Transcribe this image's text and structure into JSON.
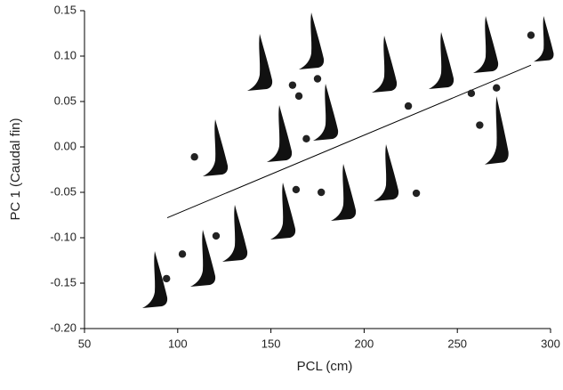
{
  "chart_data": {
    "type": "scatter",
    "x_label": "PCL (cm)",
    "y_label": "PC 1 (Caudal fin)",
    "x": [
      109,
      94,
      102.5,
      120.6,
      161.6,
      165,
      175,
      169,
      163.5,
      177,
      223.7,
      228,
      257.5,
      262,
      271,
      289.5
    ],
    "values": [
      -0.011,
      -0.145,
      -0.118,
      -0.098,
      0.068,
      0.056,
      0.075,
      0.009,
      -0.047,
      -0.05,
      0.045,
      -0.051,
      0.059,
      0.024,
      0.065,
      0.123
    ],
    "color": "#222222",
    "fit_x": [
      94.4,
      289.5
    ],
    "fit_y": [
      -0.078,
      0.09
    ],
    "xlim": [
      50,
      300
    ],
    "ylim": [
      -0.2,
      0.15
    ],
    "xticks": [
      50,
      100,
      150,
      200,
      250,
      300
    ],
    "yticks": [
      0.15,
      {
        "value": 0.1,
        "label": "0.10"
      },
      0.05,
      {
        "value": 0,
        "label": "0.00"
      },
      -0.05,
      {
        "value": -0.1,
        "label": "-0.10"
      },
      -0.15,
      {
        "value": -0.2,
        "label": "-0.20"
      }
    ]
  }
}
